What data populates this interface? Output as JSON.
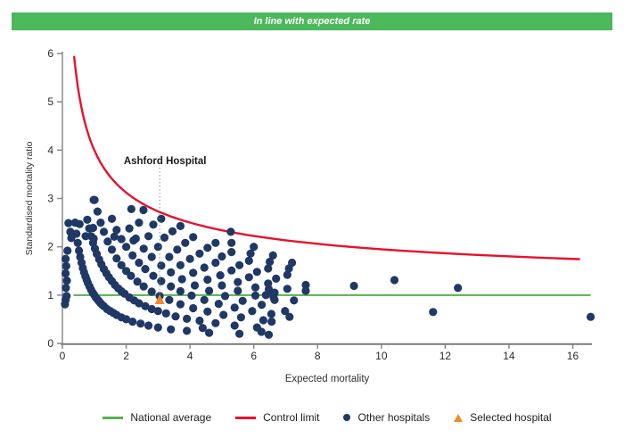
{
  "banner": {
    "title": "In line with expected rate",
    "color": "#4CB85C"
  },
  "chart_data": {
    "type": "scatter",
    "title": "In line with expected rate",
    "xlabel": "Expected mortality",
    "ylabel": "Standardised mortality ratio",
    "xlim": [
      0,
      16.6
    ],
    "ylim": [
      0,
      6
    ],
    "x_ticks": [
      0,
      2,
      4,
      6,
      8,
      10,
      12,
      14,
      16
    ],
    "y_ticks": [
      0,
      1,
      2,
      3,
      4,
      5,
      6
    ],
    "grid": "off",
    "legend_position": "bottom",
    "national_average": {
      "y": 1,
      "x_start": 0.35,
      "x_end": 16.56,
      "color": "#56B14E"
    },
    "control_limit": {
      "base": 1,
      "k": 3,
      "x_start": 0.37,
      "x_end": 16.56,
      "color": "#E8112D"
    },
    "selected_hospital": {
      "x": 3.05,
      "y": 0.9,
      "color": "#EE8A2B",
      "annotation": "Ashford Hospital"
    },
    "other_hospitals_color": "#1F3865",
    "other_hospitals": [
      [
        0.1,
        1.75
      ],
      [
        0.12,
        1.6
      ],
      [
        0.1,
        1.45
      ],
      [
        0.14,
        1.3
      ],
      [
        0.11,
        1.15
      ],
      [
        0.13,
        0.98
      ],
      [
        0.1,
        0.9
      ],
      [
        0.19,
        2.49
      ],
      [
        0.25,
        2.31
      ],
      [
        0.28,
        2.18
      ],
      [
        0.16,
        1.92
      ],
      [
        0.08,
        0.81
      ],
      [
        0.98,
        2.97
      ],
      [
        0.54,
        2.47
      ],
      [
        0.96,
        2.39
      ],
      [
        0.73,
        2.22
      ],
      [
        0.98,
        2.17
      ],
      [
        1.63,
        2.21
      ],
      [
        2.23,
        2.13
      ],
      [
        0.4,
        2.5
      ],
      [
        0.44,
        2.27
      ],
      [
        0.48,
        2.08
      ],
      [
        0.52,
        1.92
      ],
      [
        0.56,
        1.79
      ],
      [
        0.6,
        1.67
      ],
      [
        0.64,
        1.56
      ],
      [
        0.68,
        1.47
      ],
      [
        0.72,
        1.39
      ],
      [
        0.76,
        1.32
      ],
      [
        0.8,
        1.25
      ],
      [
        0.85,
        1.18
      ],
      [
        0.9,
        1.11
      ],
      [
        0.95,
        1.05
      ],
      [
        1.0,
        1.0
      ],
      [
        1.05,
        0.95
      ],
      [
        1.1,
        0.91
      ],
      [
        1.15,
        0.87
      ],
      [
        1.2,
        0.83
      ],
      [
        1.25,
        0.8
      ],
      [
        1.3,
        0.77
      ],
      [
        1.4,
        0.71
      ],
      [
        1.5,
        0.67
      ],
      [
        1.6,
        0.63
      ],
      [
        1.7,
        0.59
      ],
      [
        1.85,
        0.54
      ],
      [
        2.0,
        0.5
      ],
      [
        2.2,
        0.45
      ],
      [
        2.45,
        0.41
      ],
      [
        2.7,
        0.37
      ],
      [
        3.0,
        0.33
      ],
      [
        3.4,
        0.29
      ],
      [
        3.9,
        0.26
      ],
      [
        4.6,
        0.22
      ],
      [
        0.78,
        2.56
      ],
      [
        0.84,
        2.38
      ],
      [
        0.9,
        2.22
      ],
      [
        0.96,
        2.08
      ],
      [
        1.02,
        1.96
      ],
      [
        1.08,
        1.85
      ],
      [
        1.15,
        1.74
      ],
      [
        1.22,
        1.64
      ],
      [
        1.3,
        1.54
      ],
      [
        1.38,
        1.45
      ],
      [
        1.46,
        1.37
      ],
      [
        1.55,
        1.29
      ],
      [
        1.65,
        1.21
      ],
      [
        1.75,
        1.14
      ],
      [
        1.85,
        1.08
      ],
      [
        1.95,
        1.03
      ],
      [
        2.1,
        0.95
      ],
      [
        2.25,
        0.89
      ],
      [
        2.4,
        0.83
      ],
      [
        2.6,
        0.77
      ],
      [
        2.8,
        0.71
      ],
      [
        3.0,
        0.67
      ],
      [
        3.25,
        0.62
      ],
      [
        3.55,
        0.56
      ],
      [
        3.9,
        0.51
      ],
      [
        4.3,
        0.47
      ],
      [
        4.8,
        0.42
      ],
      [
        5.4,
        0.37
      ],
      [
        6.1,
        0.33
      ],
      [
        1.01,
        2.97
      ],
      [
        1.1,
        2.73
      ],
      [
        1.2,
        2.5
      ],
      [
        1.3,
        2.31
      ],
      [
        1.42,
        2.11
      ],
      [
        1.55,
        1.94
      ],
      [
        1.7,
        1.76
      ],
      [
        1.85,
        1.62
      ],
      [
        2.0,
        1.5
      ],
      [
        2.15,
        1.4
      ],
      [
        2.35,
        1.28
      ],
      [
        2.55,
        1.18
      ],
      [
        2.8,
        1.07
      ],
      [
        3.05,
        0.98
      ],
      [
        3.35,
        0.9
      ],
      [
        3.7,
        0.81
      ],
      [
        4.1,
        0.73
      ],
      [
        4.55,
        0.66
      ],
      [
        5.05,
        0.59
      ],
      [
        5.6,
        0.54
      ],
      [
        6.3,
        0.48
      ],
      [
        1.55,
        2.58
      ],
      [
        1.7,
        2.35
      ],
      [
        1.85,
        2.16
      ],
      [
        2.0,
        2.0
      ],
      [
        2.2,
        1.82
      ],
      [
        2.4,
        1.67
      ],
      [
        2.6,
        1.54
      ],
      [
        2.85,
        1.4
      ],
      [
        3.1,
        1.29
      ],
      [
        3.4,
        1.18
      ],
      [
        3.7,
        1.08
      ],
      [
        4.05,
        0.99
      ],
      [
        4.45,
        0.9
      ],
      [
        4.9,
        0.82
      ],
      [
        5.4,
        0.74
      ],
      [
        5.95,
        0.67
      ],
      [
        6.55,
        0.61
      ],
      [
        2.1,
        2.38
      ],
      [
        2.3,
        2.17
      ],
      [
        2.55,
        1.96
      ],
      [
        2.8,
        1.79
      ],
      [
        3.1,
        1.61
      ],
      [
        3.4,
        1.47
      ],
      [
        3.75,
        1.33
      ],
      [
        4.15,
        1.2
      ],
      [
        4.6,
        1.09
      ],
      [
        5.1,
        0.98
      ],
      [
        5.65,
        0.88
      ],
      [
        6.25,
        0.8
      ],
      [
        2.16,
        2.78
      ],
      [
        2.4,
        2.5
      ],
      [
        2.7,
        2.22
      ],
      [
        3.0,
        2.0
      ],
      [
        3.35,
        1.79
      ],
      [
        3.7,
        1.62
      ],
      [
        4.1,
        1.46
      ],
      [
        4.55,
        1.32
      ],
      [
        5.0,
        1.2
      ],
      [
        5.5,
        1.09
      ],
      [
        6.05,
        0.99
      ],
      [
        6.65,
        0.9
      ],
      [
        2.54,
        2.76
      ],
      [
        2.85,
        2.46
      ],
      [
        3.2,
        2.19
      ],
      [
        3.6,
        1.94
      ],
      [
        4.0,
        1.75
      ],
      [
        4.45,
        1.57
      ],
      [
        4.95,
        1.41
      ],
      [
        5.5,
        1.27
      ],
      [
        6.05,
        1.16
      ],
      [
        6.65,
        1.05
      ],
      [
        3.1,
        2.58
      ],
      [
        3.45,
        2.32
      ],
      [
        3.85,
        2.08
      ],
      [
        4.3,
        1.86
      ],
      [
        4.8,
        1.67
      ],
      [
        5.3,
        1.51
      ],
      [
        5.85,
        1.37
      ],
      [
        6.45,
        1.24
      ],
      [
        7.05,
        1.13
      ],
      [
        3.7,
        2.43
      ],
      [
        4.1,
        2.2
      ],
      [
        4.55,
        1.98
      ],
      [
        5.0,
        1.8
      ],
      [
        5.55,
        1.62
      ],
      [
        6.1,
        1.48
      ],
      [
        6.7,
        1.34
      ],
      [
        4.8,
        2.08
      ],
      [
        5.3,
        1.89
      ],
      [
        5.85,
        1.71
      ],
      [
        6.45,
        1.55
      ],
      [
        7.05,
        1.42
      ],
      [
        5.3,
        2.08
      ],
      [
        5.9,
        1.86
      ],
      [
        6.5,
        1.69
      ],
      [
        7.1,
        1.55
      ],
      [
        6.0,
        2.0
      ],
      [
        6.6,
        1.82
      ],
      [
        7.2,
        1.67
      ],
      [
        5.28,
        2.31
      ],
      [
        6.38,
        1.0
      ],
      [
        6.47,
        1.12
      ],
      [
        6.55,
        1.05
      ],
      [
        6.62,
        0.95
      ],
      [
        6.98,
        0.67
      ],
      [
        7.12,
        0.55
      ],
      [
        6.56,
        0.45
      ],
      [
        6.24,
        0.24
      ],
      [
        6.47,
        0.18
      ],
      [
        7.26,
        0.89
      ],
      [
        7.63,
        1.21
      ],
      [
        7.63,
        1.09
      ],
      [
        9.14,
        1.19
      ],
      [
        10.41,
        1.31
      ],
      [
        11.62,
        0.65
      ],
      [
        12.4,
        1.15
      ],
      [
        16.56,
        0.55
      ],
      [
        5.55,
        0.2
      ],
      [
        4.4,
        0.32
      ]
    ],
    "legend": [
      {
        "label": "National average",
        "marker": "line",
        "color": "#56B14E"
      },
      {
        "label": "Control limit",
        "marker": "line",
        "color": "#E8112D"
      },
      {
        "label": "Other hospitals",
        "marker": "dot",
        "color": "#1F3865"
      },
      {
        "label": "Selected hospital",
        "marker": "triangle",
        "color": "#EE8A2B"
      }
    ]
  }
}
